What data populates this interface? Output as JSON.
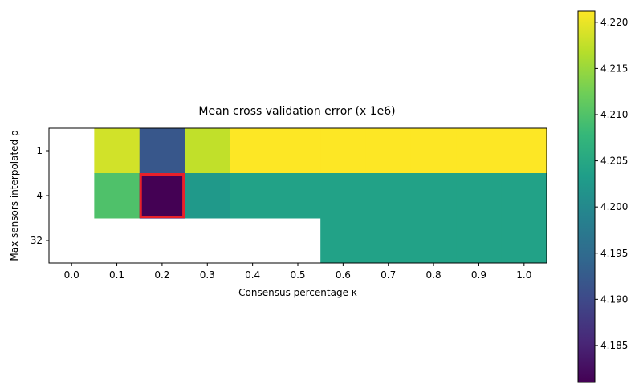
{
  "chart_data": {
    "type": "heatmap",
    "title": "Mean cross validation error (x 1e6)",
    "xlabel": "Consensus percentage κ",
    "ylabel": "Max sensors interpolated ρ",
    "x_ticks": [
      "0.0",
      "0.1",
      "0.2",
      "0.3",
      "0.4",
      "0.5",
      "0.6",
      "0.7",
      "0.8",
      "0.9",
      "1.0"
    ],
    "y_ticks": [
      "1",
      "4",
      "32"
    ],
    "x": [
      0.0,
      0.1,
      0.2,
      0.3,
      0.4,
      0.5,
      0.6,
      0.7,
      0.8,
      0.9,
      1.0
    ],
    "y": [
      1,
      4,
      32
    ],
    "values": [
      [
        null,
        4.2185,
        4.192,
        4.2175,
        4.2212,
        4.2212,
        4.2212,
        4.2212,
        4.2212,
        4.2212,
        4.2212
      ],
      [
        null,
        4.2098,
        4.181,
        4.2025,
        4.204,
        4.204,
        4.204,
        4.204,
        4.204,
        4.204,
        4.204
      ],
      [
        null,
        null,
        null,
        null,
        null,
        null,
        4.204,
        4.204,
        4.204,
        4.204,
        4.204
      ]
    ],
    "highlight": {
      "x": 0.2,
      "y": 4,
      "color": "#e8202a"
    },
    "colormap": "viridis",
    "colorbar": {
      "min": 4.181,
      "max": 4.2212,
      "ticks": [
        "4.185",
        "4.190",
        "4.195",
        "4.200",
        "4.205",
        "4.210",
        "4.215",
        "4.220"
      ],
      "tick_values": [
        4.185,
        4.19,
        4.195,
        4.2,
        4.205,
        4.21,
        4.215,
        4.22
      ]
    },
    "grid": false,
    "legend": "none"
  }
}
